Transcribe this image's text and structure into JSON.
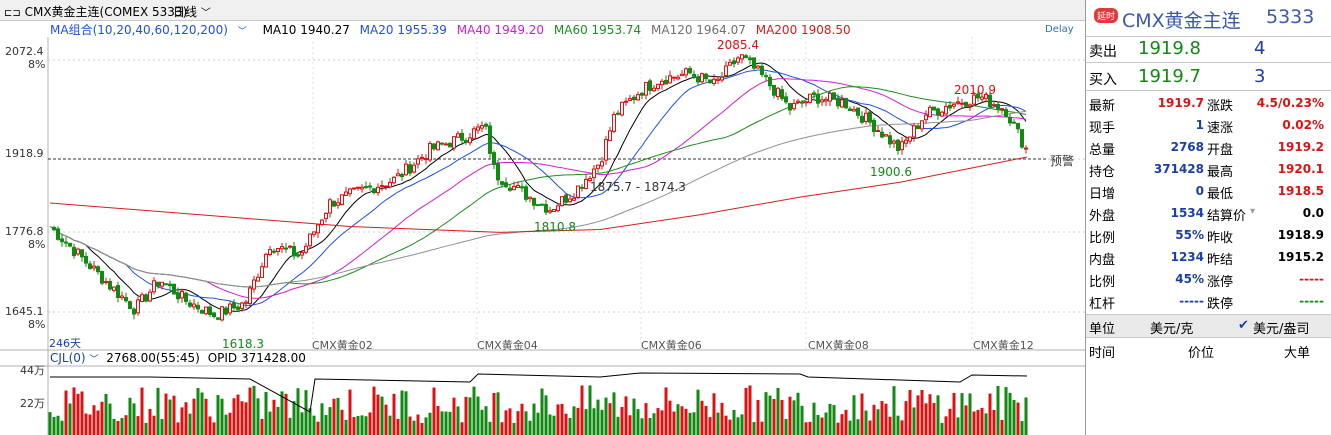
{
  "topbar": {
    "title": "CMX黄金主连(COMEX 5333)",
    "period": "日线"
  },
  "ma": {
    "group": "MA组合(10,20,40,60,120,200)",
    "items": [
      {
        "label": "MA10 1940.27",
        "color": "#000000"
      },
      {
        "label": "MA20 1955.39",
        "color": "#1e50e6"
      },
      {
        "label": "MA40 1949.20",
        "color": "#d21ed2"
      },
      {
        "label": "MA60 1953.74",
        "color": "#1e8c1e"
      },
      {
        "label": "MA120 1964.07",
        "color": "#707070"
      },
      {
        "label": "MA200 1908.50",
        "color": "#d21e1e"
      }
    ],
    "delay": "Delay"
  },
  "chart": {
    "y_labels": [
      {
        "price": "2072.4",
        "pct": "8%"
      },
      {
        "price": "1918.9",
        "pct": ""
      },
      {
        "price": "1776.8",
        "pct": "8%"
      },
      {
        "price": "1645.1",
        "pct": "8%"
      }
    ],
    "x_labels": [
      "CMX黄金02",
      "CMX黄金04",
      "CMX黄金06",
      "CMX黄金08",
      "CMX黄金12"
    ],
    "days": "246天",
    "annotations": [
      "2085.4",
      "2010.9",
      "1875.7 - 1874.3",
      "1900.6",
      "1810.8",
      "1618.3"
    ],
    "alert_label": "预警",
    "current_price": 1918.9,
    "ylim": [
      1618.3,
      2085.4
    ]
  },
  "volume": {
    "header": "CJL(0)",
    "value": "2768.00(55:45)",
    "opid": "OPID 371428.00",
    "y_labels": [
      "44万",
      "22万"
    ]
  },
  "panel": {
    "badge": "延时",
    "name": "CMX黄金主连",
    "code": "5333",
    "sell": {
      "label": "卖出",
      "price": "1919.8",
      "qty": "4"
    },
    "buy": {
      "label": "买入",
      "price": "1919.7",
      "qty": "3"
    },
    "rows": [
      {
        "l1": "最新",
        "v1": "1919.7",
        "c1": "red",
        "l2": "涨跌",
        "v2": "4.5/0.23%",
        "c2": "red"
      },
      {
        "l1": "现手",
        "v1": "1",
        "c1": "blue",
        "l2": "速涨",
        "v2": "0.02%",
        "c2": "red"
      },
      {
        "l1": "总量",
        "v1": "2768",
        "c1": "blue",
        "l2": "开盘",
        "v2": "1919.2",
        "c2": "red"
      },
      {
        "l1": "持仓",
        "v1": "371428",
        "c1": "blue",
        "l2": "最高",
        "v2": "1920.1",
        "c2": "red"
      },
      {
        "l1": "日增",
        "v1": "0",
        "c1": "blue",
        "l2": "最低",
        "v2": "1918.5",
        "c2": "red"
      },
      {
        "l1": "外盘",
        "v1": "1534",
        "c1": "blue",
        "l2": "结算价",
        "v2": "0.0",
        "c2": "blk"
      },
      {
        "l1": "比例",
        "v1": "55%",
        "c1": "blue",
        "l2": "昨收",
        "v2": "1918.9",
        "c2": "blk"
      },
      {
        "l1": "内盘",
        "v1": "1234",
        "c1": "blue",
        "l2": "昨结",
        "v2": "1915.2",
        "c2": "blk"
      },
      {
        "l1": "比例",
        "v1": "45%",
        "c1": "blue",
        "l2": "涨停",
        "v2": "-----",
        "c2": "red"
      },
      {
        "l1": "杠杆",
        "v1": "-----",
        "c1": "blue",
        "l2": "跌停",
        "v2": "-----",
        "c2": "green"
      }
    ],
    "unit_label": "单位",
    "unit_value": "美元/克",
    "unit_option": "美元/盎司",
    "tick_headers": [
      "时间",
      "价位",
      "大单"
    ]
  }
}
